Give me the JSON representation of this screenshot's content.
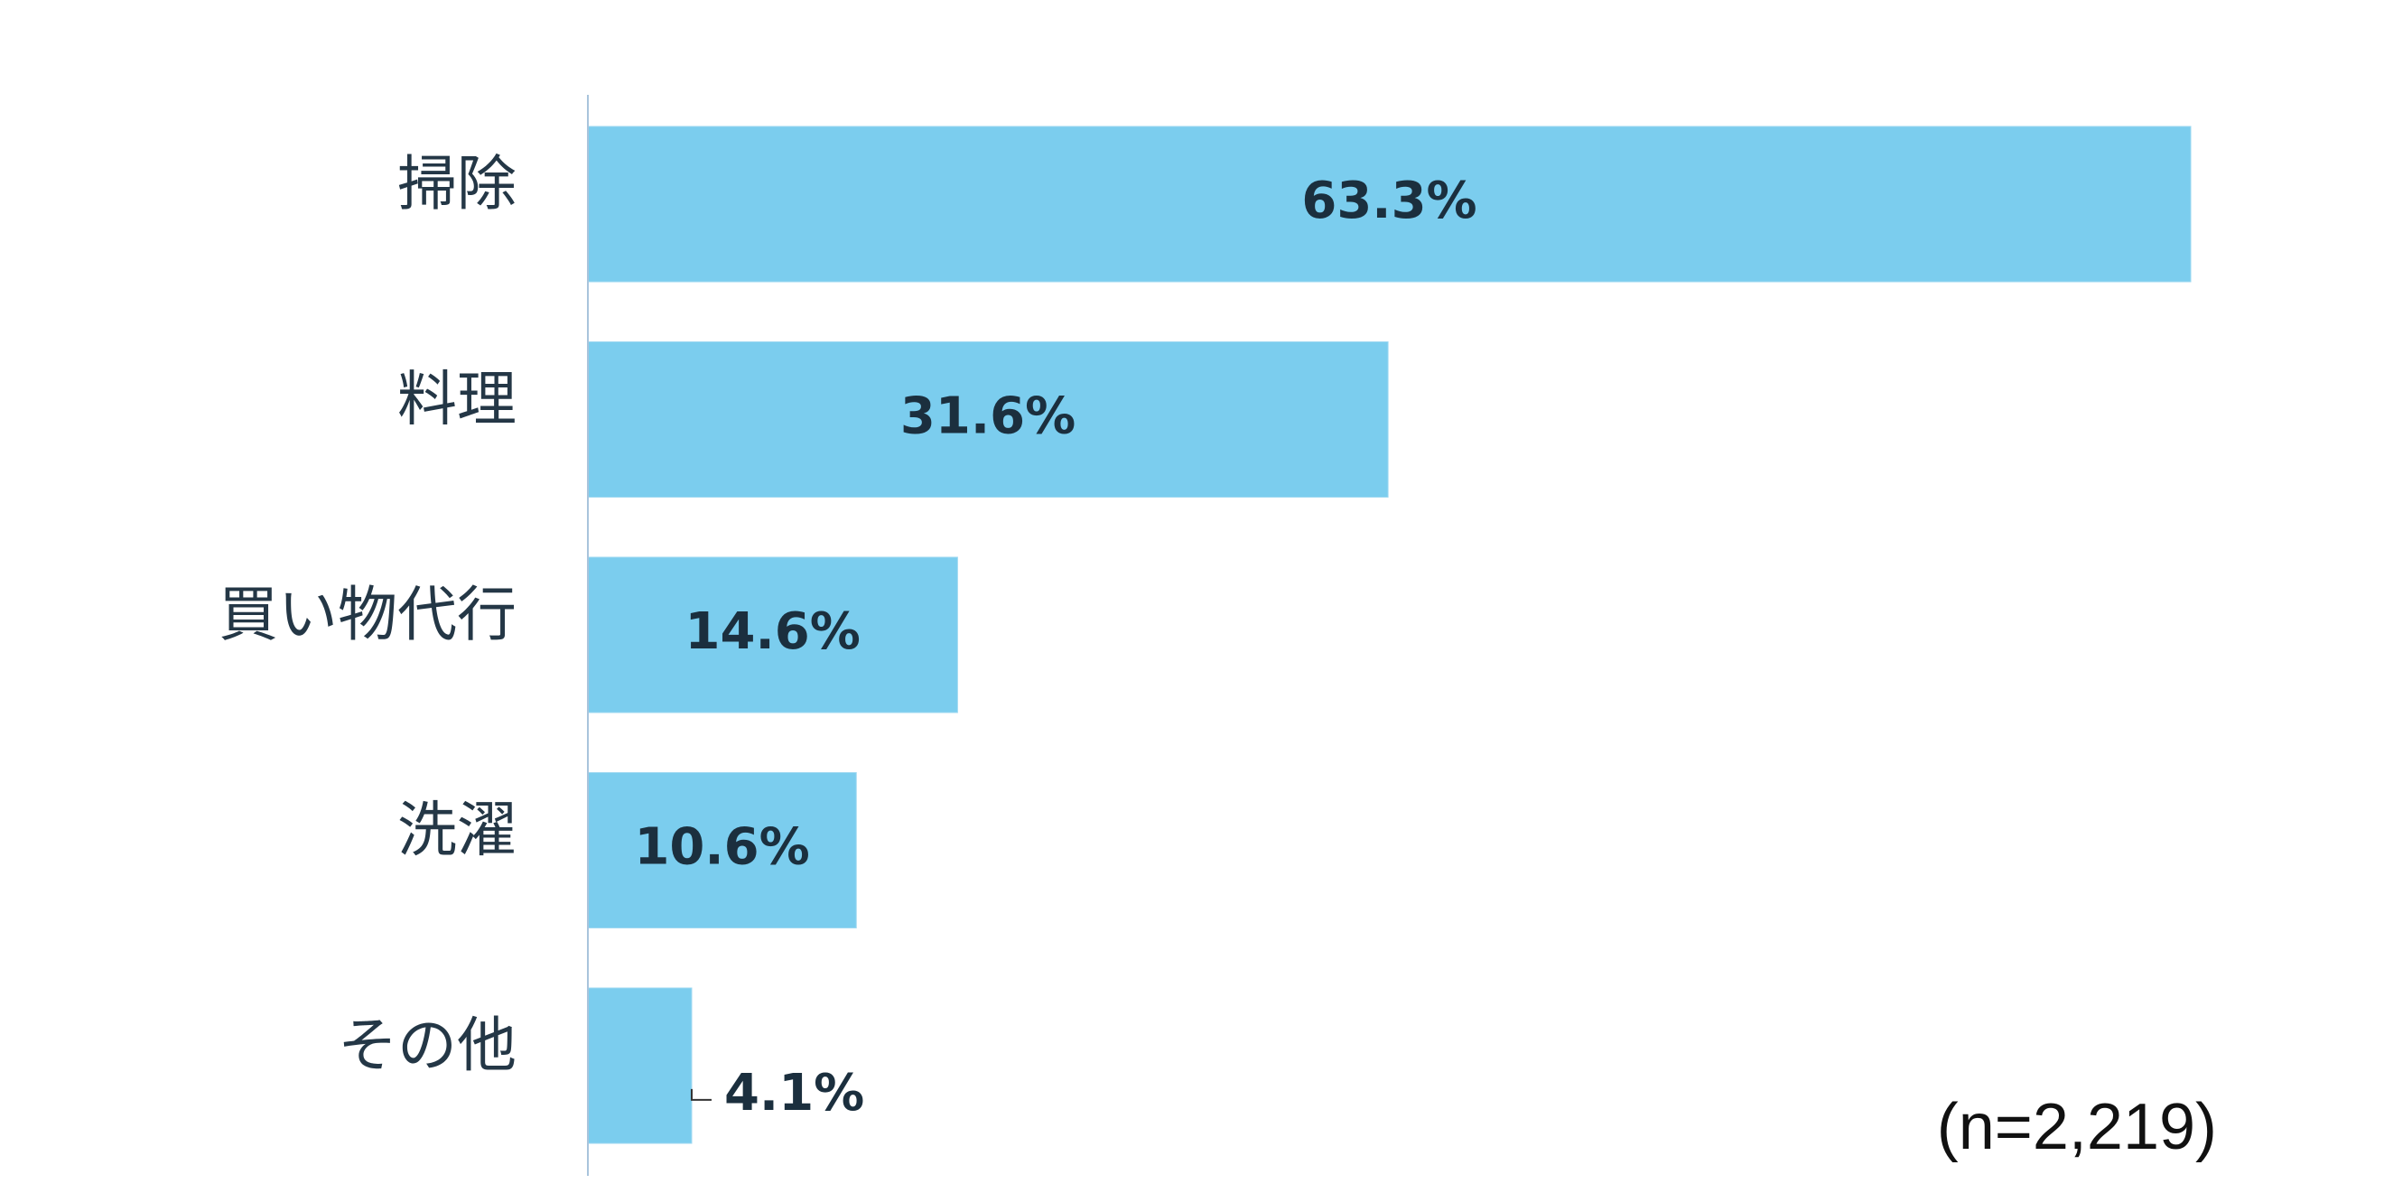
{
  "chart_data": {
    "type": "bar",
    "orientation": "horizontal",
    "categories": [
      "掃除",
      "料理",
      "買い物代行",
      "洗濯",
      "その他"
    ],
    "values": [
      63.3,
      31.6,
      14.6,
      10.6,
      4.1
    ],
    "value_labels": [
      "63.3%",
      "31.6%",
      "14.6%",
      "10.6%",
      "4.1%"
    ],
    "title": "",
    "xlabel": "",
    "ylabel": "",
    "xlim": [
      0,
      63.3
    ],
    "grid": false,
    "legend": "none",
    "bar_color": "#7bcdee",
    "axis_color": "#a9c4dc"
  },
  "note": "(n=2,219)"
}
